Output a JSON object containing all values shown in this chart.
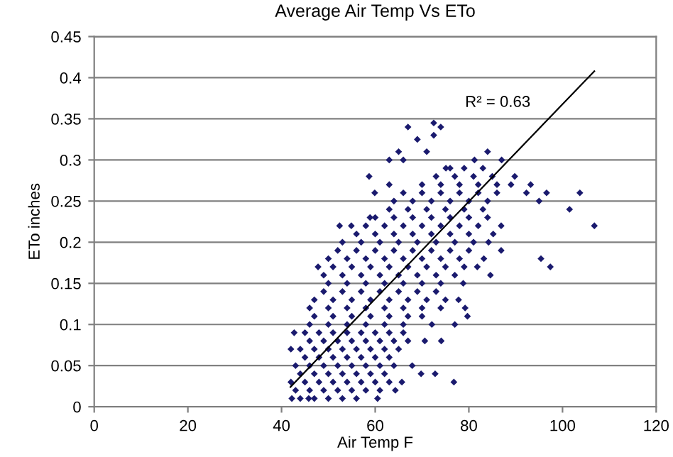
{
  "chart_data": {
    "type": "scatter",
    "title": "Average Air Temp Vs ETo",
    "xlabel": "Air Temp F",
    "ylabel": "ETo inches",
    "xlim": [
      0,
      120
    ],
    "xticks": [
      0,
      20,
      40,
      60,
      80,
      100,
      120
    ],
    "ylim": [
      0,
      0.45
    ],
    "yticks": [
      0,
      0.05,
      0.1,
      0.15,
      0.2,
      0.25,
      0.3,
      0.35,
      0.4,
      0.45
    ],
    "grid": "y",
    "marker": "diamond",
    "annotations": [
      "R² = 0.63"
    ],
    "series": [
      {
        "color": "#1a1a6e",
        "x": [
          44,
          47,
          50,
          53,
          56,
          43,
          46,
          49,
          52,
          55,
          58,
          61,
          45,
          48,
          51,
          54,
          57,
          60,
          63,
          44,
          47,
          50,
          53,
          56,
          59,
          62,
          43,
          46,
          49,
          52,
          55,
          58,
          61,
          64,
          45,
          48,
          51,
          54,
          57,
          60,
          63,
          44,
          47,
          50,
          53,
          56,
          59,
          62,
          65,
          46,
          49,
          52,
          55,
          58,
          61,
          64,
          67,
          45,
          48,
          51,
          54,
          57,
          60,
          63,
          66,
          46,
          50,
          54,
          58,
          62,
          66,
          47,
          51,
          55,
          59,
          63,
          67,
          70,
          46,
          50,
          54,
          58,
          62,
          66,
          70,
          74,
          47,
          51,
          55,
          59,
          63,
          67,
          71,
          75,
          49,
          53,
          57,
          61,
          65,
          69,
          73,
          50,
          54,
          58,
          62,
          66,
          70,
          74,
          49,
          53,
          57,
          61,
          65,
          69,
          73,
          77,
          51,
          55,
          59,
          63,
          67,
          71,
          75,
          79,
          50,
          54,
          58,
          62,
          66,
          70,
          74,
          78,
          52,
          56,
          60,
          64,
          68,
          72,
          76,
          80,
          53,
          57,
          61,
          65,
          69,
          73,
          77,
          81,
          56,
          60,
          64,
          68,
          72,
          76,
          80,
          58,
          62,
          66,
          70,
          74,
          78,
          82,
          60,
          64,
          68,
          72,
          76,
          80,
          84,
          63,
          67,
          71,
          75,
          79,
          83,
          64,
          68,
          72,
          76,
          80,
          84,
          66,
          70,
          74,
          78,
          82,
          86,
          70,
          74,
          78,
          82,
          86,
          89,
          73,
          77,
          81,
          85,
          76,
          79,
          83,
          67,
          72.5,
          74,
          72.5,
          69,
          71,
          65,
          63,
          66,
          58.7,
          93.2,
          92.3,
          96.6,
          95,
          103.7,
          101.5,
          106.8,
          95.4,
          97.4,
          84.6,
          86.9,
          86.9,
          75.1,
          81.2,
          84,
          87,
          89.8,
          42.2,
          45.8,
          60.5,
          42,
          42,
          42.7,
          47.8,
          52.4,
          54.9,
          58.9,
          59.9,
          63,
          69.8,
          72.8,
          76.8,
          64.3,
          65.7,
          67.9,
          70.6,
          74.1,
          72.1,
          77,
          79.7,
          79.2,
          77.8,
          78.8,
          81.8,
          83.2,
          84.2,
          85.2
        ],
        "values": [
          0.01,
          0.01,
          0.01,
          0.01,
          0.01,
          0.02,
          0.02,
          0.02,
          0.02,
          0.02,
          0.02,
          0.02,
          0.03,
          0.03,
          0.03,
          0.03,
          0.03,
          0.03,
          0.03,
          0.04,
          0.04,
          0.04,
          0.04,
          0.04,
          0.04,
          0.04,
          0.05,
          0.05,
          0.05,
          0.05,
          0.05,
          0.05,
          0.05,
          0.05,
          0.06,
          0.06,
          0.06,
          0.06,
          0.06,
          0.06,
          0.06,
          0.07,
          0.07,
          0.07,
          0.07,
          0.07,
          0.07,
          0.07,
          0.07,
          0.08,
          0.08,
          0.08,
          0.08,
          0.08,
          0.08,
          0.08,
          0.08,
          0.09,
          0.09,
          0.09,
          0.09,
          0.09,
          0.09,
          0.09,
          0.09,
          0.1,
          0.1,
          0.1,
          0.1,
          0.1,
          0.1,
          0.11,
          0.11,
          0.11,
          0.11,
          0.11,
          0.11,
          0.11,
          0.12,
          0.12,
          0.12,
          0.12,
          0.12,
          0.12,
          0.12,
          0.12,
          0.13,
          0.13,
          0.13,
          0.13,
          0.13,
          0.13,
          0.13,
          0.13,
          0.14,
          0.14,
          0.14,
          0.14,
          0.14,
          0.14,
          0.14,
          0.15,
          0.15,
          0.15,
          0.15,
          0.15,
          0.15,
          0.15,
          0.16,
          0.16,
          0.16,
          0.16,
          0.16,
          0.16,
          0.16,
          0.16,
          0.17,
          0.17,
          0.17,
          0.17,
          0.17,
          0.17,
          0.17,
          0.17,
          0.18,
          0.18,
          0.18,
          0.18,
          0.18,
          0.18,
          0.18,
          0.18,
          0.19,
          0.19,
          0.19,
          0.19,
          0.19,
          0.19,
          0.19,
          0.19,
          0.2,
          0.2,
          0.2,
          0.2,
          0.2,
          0.2,
          0.2,
          0.2,
          0.21,
          0.21,
          0.21,
          0.21,
          0.21,
          0.21,
          0.21,
          0.22,
          0.22,
          0.22,
          0.22,
          0.22,
          0.22,
          0.22,
          0.23,
          0.23,
          0.23,
          0.23,
          0.23,
          0.23,
          0.23,
          0.24,
          0.24,
          0.24,
          0.24,
          0.24,
          0.24,
          0.25,
          0.25,
          0.25,
          0.25,
          0.25,
          0.25,
          0.26,
          0.26,
          0.26,
          0.26,
          0.26,
          0.26,
          0.27,
          0.27,
          0.27,
          0.27,
          0.27,
          0.27,
          0.28,
          0.28,
          0.28,
          0.28,
          0.29,
          0.29,
          0.29,
          0.34,
          0.345,
          0.34,
          0.33,
          0.325,
          0.31,
          0.31,
          0.3,
          0.3,
          0.28,
          0.27,
          0.26,
          0.26,
          0.25,
          0.26,
          0.24,
          0.22,
          0.18,
          0.17,
          0.16,
          0.19,
          0.22,
          0.29,
          0.3,
          0.31,
          0.3,
          0.28,
          0.01,
          0.01,
          0.01,
          0.03,
          0.07,
          0.09,
          0.17,
          0.22,
          0.22,
          0.23,
          0.26,
          0.27,
          0.04,
          0.04,
          0.03,
          0.02,
          0.03,
          0.05,
          0.08,
          0.08,
          0.1,
          0.1,
          0.11,
          0.12,
          0.13,
          0.15,
          0.17,
          0.18,
          0.2,
          0.21
        ]
      },
      {
        "type": "line",
        "color": "#000000",
        "marker": "none",
        "x": [
          41.9,
          106.8
        ],
        "values": [
          0.024,
          0.408
        ]
      }
    ]
  }
}
